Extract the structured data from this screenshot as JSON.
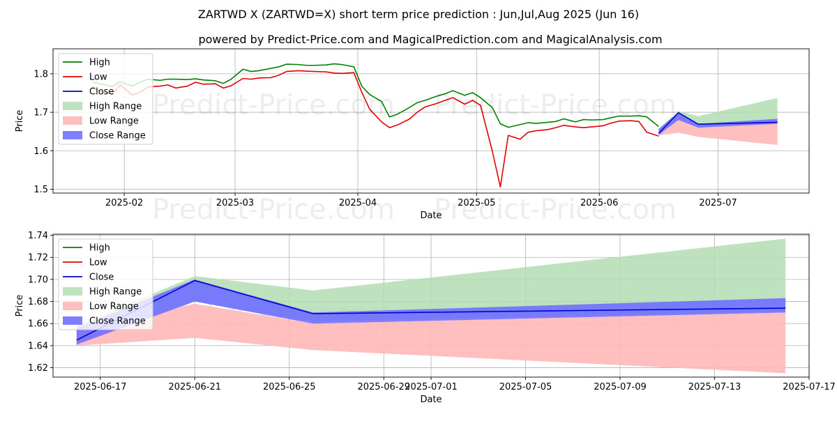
{
  "title": "ZARTWD X (ZARTWD=X) short term price prediction : Jun,Jul,Aug 2025 (Jun 16)",
  "subtitle": "powered by Predict-Price.com and MagicalPrediction.com and MagicalAnalysis.com",
  "watermark": "Predict-Price.com",
  "colors": {
    "high": "#008000",
    "low": "#e00000",
    "close": "#0000d0",
    "high_range": "#b3dcb3",
    "low_range": "#ffb8b8",
    "close_range": "#7070ff",
    "grid": "#b0b0b0"
  },
  "legend_labels": {
    "high": "High",
    "low": "Low",
    "close": "Close",
    "high_range": "High Range",
    "low_range": "Low Range",
    "close_range": "Close Range"
  },
  "chart_data": [
    {
      "type": "line",
      "panel": "history-and-forecast",
      "xlabel": "Date",
      "ylabel": "Price",
      "xlim": [
        "2025-01-14",
        "2025-07-24"
      ],
      "ylim": [
        1.49,
        1.865
      ],
      "x_ticks": [
        "2025-02-01",
        "2025-03-01",
        "2025-04-01",
        "2025-05-01",
        "2025-06-01",
        "2025-07-01"
      ],
      "x_tick_labels": [
        "2025-02",
        "2025-03",
        "2025-04",
        "2025-05",
        "2025-06",
        "2025-07"
      ],
      "y_ticks": [
        1.5,
        1.6,
        1.7,
        1.8
      ],
      "y_tick_labels": [
        "1.5",
        "1.6",
        "1.7",
        "1.8"
      ],
      "legend": "top-left",
      "grid": true,
      "history": {
        "dates": [
          "2025-01-24",
          "2025-01-27",
          "2025-01-29",
          "2025-01-31",
          "2025-02-03",
          "2025-02-05",
          "2025-02-07",
          "2025-02-10",
          "2025-02-12",
          "2025-02-14",
          "2025-02-17",
          "2025-02-19",
          "2025-02-21",
          "2025-02-24",
          "2025-02-26",
          "2025-02-28",
          "2025-03-03",
          "2025-03-05",
          "2025-03-07",
          "2025-03-10",
          "2025-03-12",
          "2025-03-14",
          "2025-03-17",
          "2025-03-19",
          "2025-03-21",
          "2025-03-24",
          "2025-03-26",
          "2025-03-28",
          "2025-03-31",
          "2025-04-02",
          "2025-04-04",
          "2025-04-07",
          "2025-04-09",
          "2025-04-11",
          "2025-04-14",
          "2025-04-16",
          "2025-04-18",
          "2025-04-21",
          "2025-04-23",
          "2025-04-25",
          "2025-04-28",
          "2025-04-30",
          "2025-05-02",
          "2025-05-05",
          "2025-05-07",
          "2025-05-09",
          "2025-05-12",
          "2025-05-14",
          "2025-05-16",
          "2025-05-19",
          "2025-05-21",
          "2025-05-23",
          "2025-05-26",
          "2025-05-28",
          "2025-05-30",
          "2025-06-02",
          "2025-06-04",
          "2025-06-06",
          "2025-06-09",
          "2025-06-11",
          "2025-06-13",
          "2025-06-16"
        ],
        "high": [
          1.778,
          1.772,
          1.767,
          1.779,
          1.768,
          1.778,
          1.786,
          1.783,
          1.786,
          1.786,
          1.785,
          1.787,
          1.784,
          1.782,
          1.775,
          1.786,
          1.812,
          1.806,
          1.808,
          1.814,
          1.818,
          1.825,
          1.824,
          1.822,
          1.822,
          1.823,
          1.826,
          1.824,
          1.818,
          1.768,
          1.746,
          1.728,
          1.688,
          1.695,
          1.712,
          1.725,
          1.731,
          1.742,
          1.748,
          1.756,
          1.744,
          1.751,
          1.738,
          1.712,
          1.67,
          1.661,
          1.668,
          1.673,
          1.671,
          1.674,
          1.676,
          1.683,
          1.675,
          1.681,
          1.68,
          1.681,
          1.686,
          1.69,
          1.69,
          1.691,
          1.688,
          1.663
        ],
        "low": [
          1.762,
          1.751,
          1.748,
          1.771,
          1.745,
          1.752,
          1.766,
          1.768,
          1.771,
          1.763,
          1.768,
          1.778,
          1.773,
          1.774,
          1.763,
          1.769,
          1.788,
          1.786,
          1.789,
          1.79,
          1.796,
          1.806,
          1.808,
          1.807,
          1.806,
          1.805,
          1.802,
          1.801,
          1.803,
          1.752,
          1.708,
          1.675,
          1.66,
          1.667,
          1.682,
          1.7,
          1.714,
          1.723,
          1.731,
          1.738,
          1.721,
          1.731,
          1.718,
          1.598,
          1.506,
          1.64,
          1.63,
          1.648,
          1.652,
          1.655,
          1.66,
          1.666,
          1.662,
          1.66,
          1.662,
          1.665,
          1.672,
          1.677,
          1.678,
          1.676,
          1.648,
          1.638
        ]
      },
      "forecast": {
        "dates": [
          "2025-06-16",
          "2025-06-21",
          "2025-06-26",
          "2025-07-16"
        ],
        "high_range_upper": [
          1.658,
          1.703,
          1.69,
          1.737
        ],
        "low_range_lower": [
          1.64,
          1.647,
          1.636,
          1.615
        ],
        "close_range_upper": [
          1.656,
          1.7,
          1.67,
          1.683
        ],
        "close_range_lower": [
          1.641,
          1.68,
          1.66,
          1.67
        ],
        "close": [
          1.645,
          1.699,
          1.669,
          1.674
        ]
      }
    },
    {
      "type": "line",
      "panel": "forecast-zoom",
      "xlabel": "Date",
      "ylabel": "Price",
      "xlim": [
        "2025-06-15",
        "2025-07-17"
      ],
      "ylim": [
        1.6115,
        1.741
      ],
      "x_ticks": [
        "2025-06-17",
        "2025-06-21",
        "2025-06-25",
        "2025-06-29",
        "2025-07-01",
        "2025-07-05",
        "2025-07-09",
        "2025-07-13",
        "2025-07-17"
      ],
      "x_tick_labels": [
        "2025-06-17",
        "2025-06-21",
        "2025-06-25",
        "2025-06-29",
        "2025-07-01",
        "2025-07-05",
        "2025-07-09",
        "2025-07-13",
        "2025-07-17"
      ],
      "y_ticks": [
        1.62,
        1.64,
        1.66,
        1.68,
        1.7,
        1.72,
        1.74
      ],
      "y_tick_labels": [
        "1.62",
        "1.64",
        "1.66",
        "1.68",
        "1.70",
        "1.72",
        "1.74"
      ],
      "legend": "top-left",
      "grid": true,
      "forecast": {
        "dates": [
          "2025-06-16",
          "2025-06-21",
          "2025-06-26",
          "2025-07-16"
        ],
        "high_range_upper": [
          1.658,
          1.703,
          1.69,
          1.737
        ],
        "high_range_lower": [
          1.641,
          1.68,
          1.662,
          1.671
        ],
        "low_range_upper": [
          1.655,
          1.678,
          1.66,
          1.67
        ],
        "low_range_lower": [
          1.64,
          1.647,
          1.636,
          1.615
        ],
        "close_range_upper": [
          1.656,
          1.7,
          1.67,
          1.683
        ],
        "close_range_lower": [
          1.641,
          1.68,
          1.66,
          1.67
        ],
        "close": [
          1.645,
          1.699,
          1.669,
          1.674
        ]
      }
    }
  ]
}
